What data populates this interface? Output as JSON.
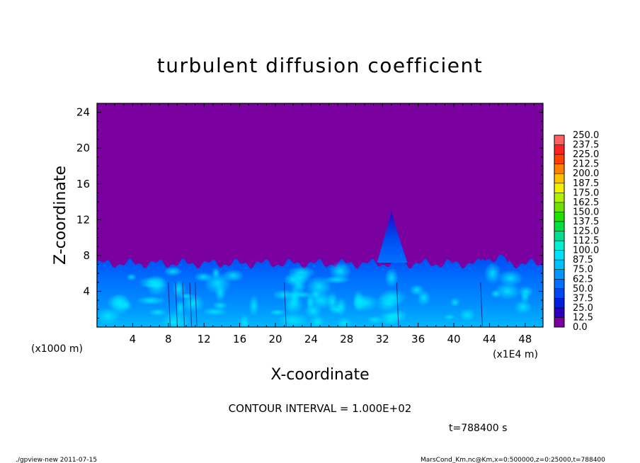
{
  "chart_data": {
    "type": "heatmap",
    "title": "turbulent diffusion coefficient",
    "xlabel": "X-coordinate",
    "ylabel": "Z-coordinate",
    "x_unit_left": "(x1000 m)",
    "x_unit_right": "(x1E4 m)",
    "xlim": [
      0,
      50
    ],
    "ylim": [
      0,
      25
    ],
    "x_ticks": [
      4,
      8,
      12,
      16,
      20,
      24,
      28,
      32,
      36,
      40,
      44,
      48
    ],
    "y_ticks": [
      4,
      8,
      12,
      16,
      20,
      24
    ],
    "colorbar_levels": [
      "0.0",
      "12.5",
      "25.0",
      "37.5",
      "50.0",
      "62.5",
      "75.0",
      "87.5",
      "100.0",
      "112.5",
      "125.0",
      "137.5",
      "150.0",
      "162.5",
      "175.0",
      "187.5",
      "200.0",
      "212.5",
      "225.0",
      "237.5",
      "250.0"
    ],
    "colorbar_colors": [
      "#7a00a0",
      "#2a00c0",
      "#0020e0",
      "#0048f0",
      "#0070ff",
      "#0098ff",
      "#00c0ff",
      "#00e0ff",
      "#00f0d0",
      "#00e090",
      "#00e040",
      "#20e000",
      "#70e000",
      "#b0f000",
      "#f0f000",
      "#ffc000",
      "#ff8000",
      "#ff4000",
      "#ff2020",
      "#ff6060"
    ],
    "background_value_color": "#7a00a0",
    "turbulent_layer_top_z": 7.5,
    "plume_peak": {
      "x": 33,
      "z": 13
    }
  },
  "annotations": {
    "contour_interval": "CONTOUR INTERVAL = 1.000E+02",
    "time": "t=788400  s",
    "footer_left": "./gpview-new   2011-07-15",
    "footer_right": "MarsCond_Km.nc@Km,x=0:500000,z=0:25000,t=788400"
  }
}
